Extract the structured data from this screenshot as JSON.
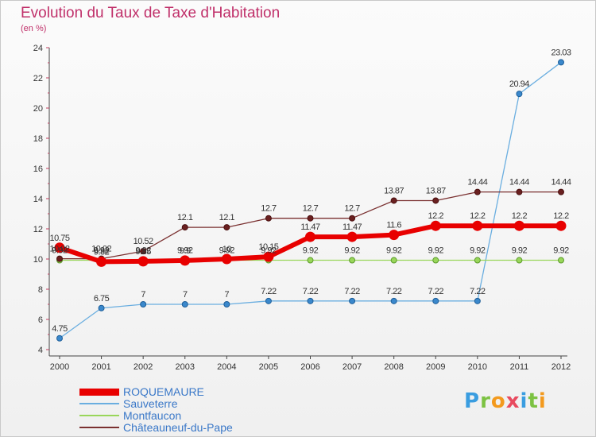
{
  "chart_data": {
    "type": "line",
    "title": "Evolution du Taux de Taxe d'Habitation",
    "subtitle": "(en %)",
    "x": [
      "2000",
      "2001",
      "2002",
      "2003",
      "2004",
      "2005",
      "2006",
      "2007",
      "2008",
      "2009",
      "2010",
      "2011",
      "2012"
    ],
    "ylim": [
      4,
      24
    ],
    "yticks": [
      4,
      6,
      8,
      10,
      12,
      14,
      16,
      18,
      20,
      22,
      24
    ],
    "grid": false,
    "legend_position": "bottom-left",
    "series": [
      {
        "name": "ROQUEMAURE",
        "color": "#e80000",
        "values": [
          10.75,
          9.82,
          9.85,
          9.9,
          10.0,
          10.15,
          11.47,
          11.47,
          11.6,
          12.2,
          12.2,
          12.2,
          12.2
        ],
        "labels": [
          "10.75",
          "9.82",
          "9.85",
          "9.9",
          "10",
          "10.15",
          "11.47",
          "11.47",
          "11.6",
          "12.2",
          "12.2",
          "12.2",
          "12.2"
        ]
      },
      {
        "name": "Sauveterre",
        "color": "#6aaee0",
        "values": [
          4.75,
          6.75,
          7,
          7,
          7,
          7.22,
          7.22,
          7.22,
          7.22,
          7.22,
          7.22,
          20.94,
          23.03
        ],
        "labels": [
          "4.75",
          "6.75",
          "7",
          "7",
          "7",
          "7.22",
          "7.22",
          "7.22",
          "7.22",
          "7.22",
          "7.22",
          "20.94",
          "23.03"
        ]
      },
      {
        "name": "Montfaucon",
        "color": "#99d65a",
        "values": [
          9.92,
          9.92,
          9.92,
          9.92,
          9.92,
          9.92,
          9.92,
          9.92,
          9.92,
          9.92,
          9.92,
          9.92,
          9.92
        ],
        "labels": [
          "9.92",
          "9.92",
          "9.92",
          "9.92",
          "9.92",
          "9.92",
          "9.92",
          "9.92",
          "9.92",
          "9.92",
          "9.92",
          "9.92",
          "9.92"
        ]
      },
      {
        "name": "Châteauneuf-du-Pape",
        "color": "#7a3030",
        "values": [
          10.02,
          10.02,
          10.52,
          12.1,
          12.1,
          12.7,
          12.7,
          12.7,
          13.87,
          13.87,
          14.44,
          14.44,
          14.44
        ],
        "labels": [
          "10.02",
          "10.02",
          "10.52",
          "12.1",
          "12.1",
          "12.7",
          "12.7",
          "12.7",
          "13.87",
          "13.87",
          "14.44",
          "14.44",
          "14.44"
        ]
      }
    ]
  },
  "logo": {
    "text": "Proxiti"
  }
}
